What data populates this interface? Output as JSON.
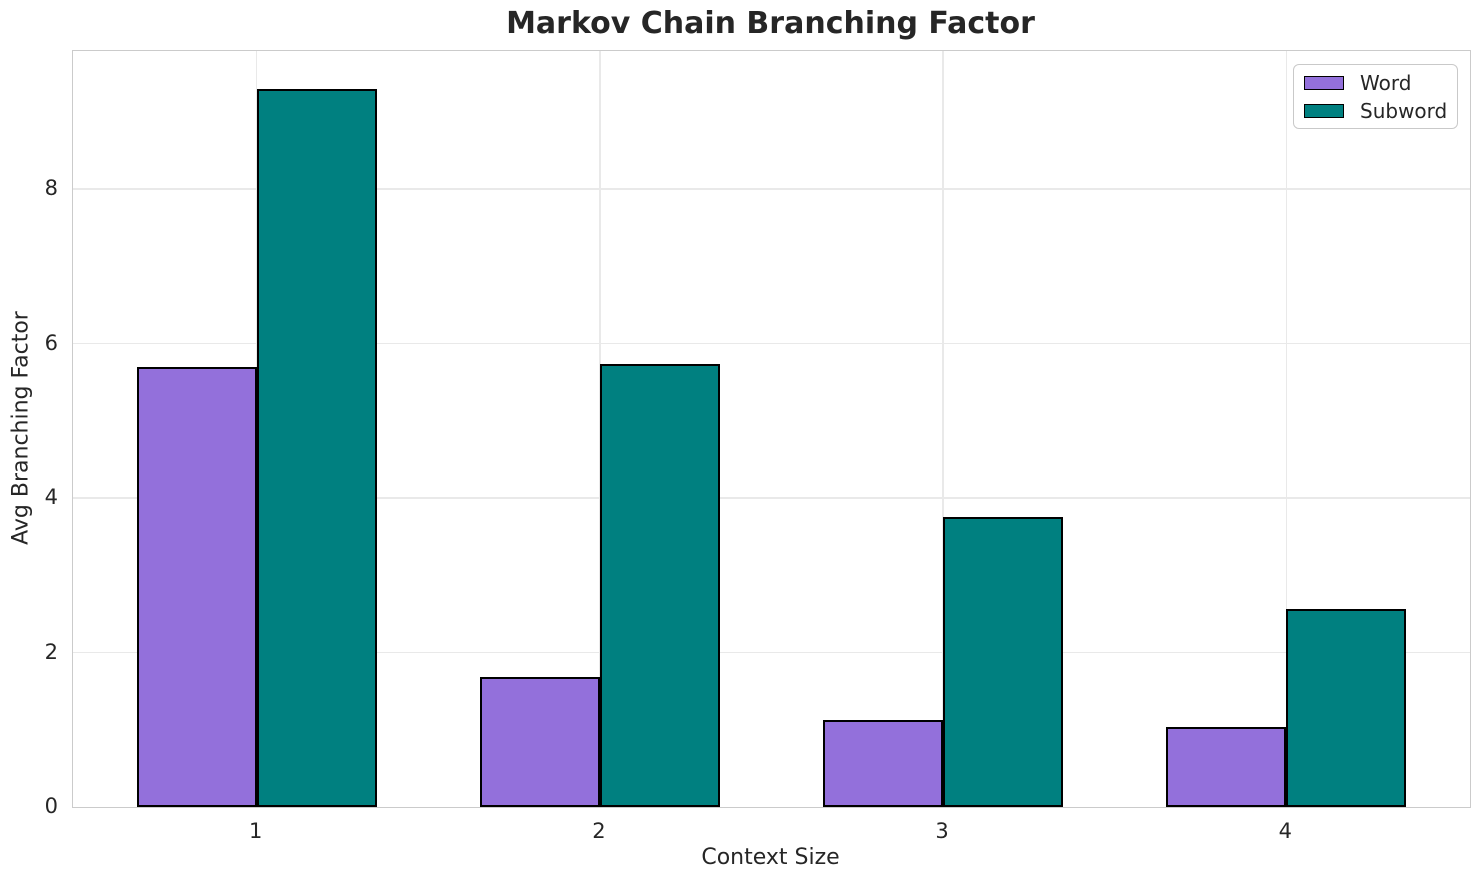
{
  "title": "Markov Chain Branching Factor",
  "axes": {
    "xlabel": "Context Size",
    "ylabel": "Avg Branching Factor",
    "xtick_labels": [
      "1",
      "2",
      "3",
      "4"
    ],
    "ytick_labels": [
      "0",
      "2",
      "4",
      "6",
      "8"
    ]
  },
  "legend": {
    "position": "upper right",
    "items": [
      {
        "label": "Word",
        "color": "#9370DB"
      },
      {
        "label": "Subword",
        "color": "#008080"
      }
    ]
  },
  "colors": {
    "word_fill": "#9370DB",
    "subword_fill": "#008080",
    "bar_edge": "#000000",
    "grid": "#e9e9e9",
    "spine": "#cbcbcb",
    "text": "#262626",
    "background": "#ffffff"
  },
  "chart_data": {
    "type": "bar",
    "categories": [
      "1",
      "2",
      "3",
      "4"
    ],
    "series": [
      {
        "name": "Word",
        "color": "#9370DB",
        "values": [
          5.7,
          1.69,
          1.13,
          1.03
        ]
      },
      {
        "name": "Subword",
        "color": "#008080",
        "values": [
          9.3,
          5.74,
          3.75,
          2.56
        ]
      }
    ],
    "title": "Markov Chain Branching Factor",
    "xlabel": "Context Size",
    "ylabel": "Avg Branching Factor",
    "xlim": [
      0.465,
      4.535
    ],
    "ylim": [
      0,
      9.79
    ],
    "yticks": [
      0,
      2,
      4,
      6,
      8
    ],
    "xticks": [
      1,
      2,
      3,
      4
    ],
    "grid": true,
    "legend_position": "upper right",
    "bar_data_width": 0.35,
    "bar_edge_color": "#000000"
  }
}
